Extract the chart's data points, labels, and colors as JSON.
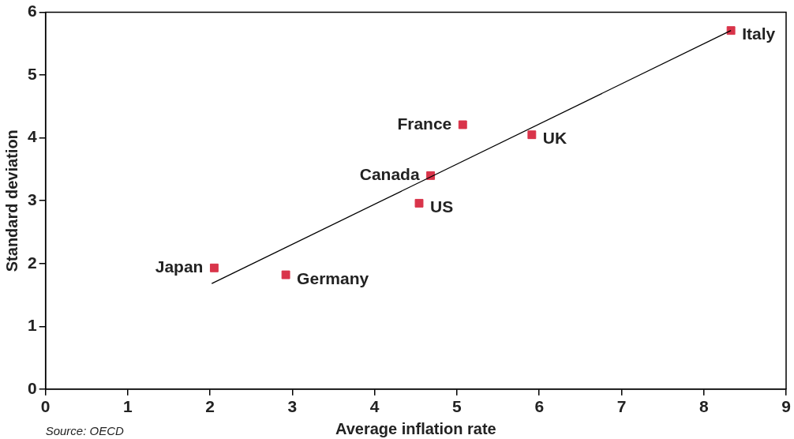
{
  "chart_data": {
    "type": "scatter",
    "xlabel": "Average inflation rate",
    "ylabel": "Standard deviation",
    "series": [
      {
        "type": "scatter",
        "color": "#d9344a",
        "marker": "square",
        "x": [
          2.05,
          2.92,
          4.54,
          4.68,
          5.07,
          5.91,
          8.33
        ],
        "values": [
          1.93,
          1.82,
          2.96,
          3.4,
          4.21,
          4.05,
          5.71
        ]
      },
      {
        "type": "line",
        "color": "#000000",
        "marker": "none",
        "x": [
          2.02,
          8.33
        ],
        "values": [
          1.68,
          5.71
        ]
      }
    ],
    "xlim": [
      0,
      9
    ],
    "xticks": [
      0,
      1,
      2,
      3,
      4,
      5,
      6,
      7,
      8,
      9
    ],
    "ylim": [
      0,
      6
    ],
    "yticks": [
      0,
      1,
      2,
      3,
      4,
      5,
      6
    ],
    "grid": false,
    "legend": false,
    "annotations": [
      {
        "text": "Japan",
        "x": 2.05,
        "y": 1.93
      },
      {
        "text": "Germany",
        "x": 2.92,
        "y": 1.82
      },
      {
        "text": "US",
        "x": 4.54,
        "y": 2.96
      },
      {
        "text": "Canada",
        "x": 4.68,
        "y": 3.4
      },
      {
        "text": "France",
        "x": 5.07,
        "y": 4.21
      },
      {
        "text": "UK",
        "x": 5.91,
        "y": 4.05
      },
      {
        "text": "Italy",
        "x": 8.33,
        "y": 5.71
      },
      "Source: OECD"
    ]
  }
}
